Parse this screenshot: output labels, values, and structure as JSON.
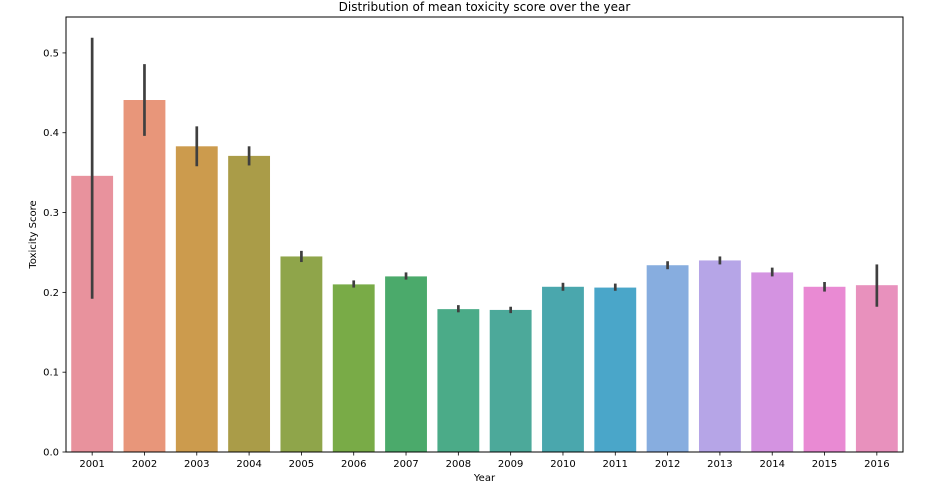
{
  "chart_data": {
    "type": "bar",
    "title": "Distribution of mean toxicity score over the year",
    "xlabel": "Year",
    "ylabel": "Toxicity Score",
    "ylim": [
      0,
      0.545
    ],
    "yticks": [
      "0.0",
      "0.1",
      "0.2",
      "0.3",
      "0.4",
      "0.5"
    ],
    "categories": [
      "2001",
      "2002",
      "2003",
      "2004",
      "2005",
      "2006",
      "2007",
      "2008",
      "2009",
      "2010",
      "2011",
      "2012",
      "2013",
      "2014",
      "2015",
      "2016"
    ],
    "values": [
      0.346,
      0.441,
      0.383,
      0.371,
      0.245,
      0.21,
      0.22,
      0.179,
      0.178,
      0.207,
      0.206,
      0.234,
      0.24,
      0.225,
      0.207,
      0.209
    ],
    "error_low": [
      0.192,
      0.396,
      0.358,
      0.359,
      0.238,
      0.206,
      0.216,
      0.175,
      0.174,
      0.202,
      0.202,
      0.229,
      0.235,
      0.22,
      0.201,
      0.182
    ],
    "error_high": [
      0.519,
      0.486,
      0.408,
      0.383,
      0.252,
      0.215,
      0.225,
      0.184,
      0.182,
      0.212,
      0.211,
      0.239,
      0.245,
      0.231,
      0.213,
      0.235
    ],
    "colors": [
      "#e8929d",
      "#e8967a",
      "#cc9b4d",
      "#aa9c48",
      "#8fa54a",
      "#79ab47",
      "#4baa6b",
      "#4bab88",
      "#4ca99a",
      "#4aa7ad",
      "#4aa6c9",
      "#87addf",
      "#b6a5e7",
      "#d493e1",
      "#e98ad3",
      "#e891bd"
    ],
    "error_color": "#3f3f3f",
    "grid": false,
    "legend": "none"
  }
}
